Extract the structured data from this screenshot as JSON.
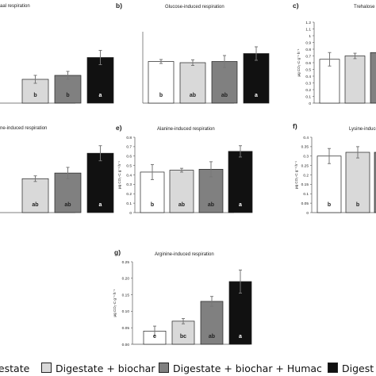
{
  "chart_data": [
    {
      "id": "a",
      "type": "bar",
      "panel_label": "",
      "title": "aal respiration",
      "categories": [
        "Digestate",
        "Digestate + biochar",
        "Digestate + biochar + Humac",
        "Digestate + Humac"
      ],
      "values": [
        null,
        0.6,
        0.7,
        1.15
      ],
      "errors": [
        null,
        0.1,
        0.1,
        0.18
      ],
      "letters": [
        "",
        "b",
        "b",
        "a"
      ],
      "ylabel": "",
      "ylim": [
        0,
        1.8
      ],
      "yticks": [],
      "grid": false
    },
    {
      "id": "b",
      "type": "bar",
      "panel_label": "b)",
      "title": "Glucose-induced respiration",
      "categories": [
        "Digestate",
        "Digestate + biochar",
        "Digestate + biochar + Humac",
        "Digestate + Humac"
      ],
      "values": [
        1.05,
        1.02,
        1.05,
        1.25
      ],
      "errors": [
        0.05,
        0.07,
        0.15,
        0.17
      ],
      "letters": [
        "b",
        "ab",
        "ab",
        "a"
      ],
      "ylabel": "",
      "ylim": [
        0,
        1.8
      ],
      "yticks": [],
      "grid": false
    },
    {
      "id": "c",
      "type": "bar",
      "panel_label": "c)",
      "title": "Trehalose induced re",
      "categories": [
        "Digestate",
        "Digestate + biochar",
        "Digestate + biochar + Humac",
        "Digestate + Humac"
      ],
      "values": [
        0.65,
        0.7,
        0.75,
        null
      ],
      "errors": [
        0.1,
        0.04,
        0.06,
        null
      ],
      "letters": [
        "",
        "",
        "",
        ""
      ],
      "ylabel": "µg CO₂-C g⁻¹ h⁻¹",
      "ylim": [
        0,
        1.2
      ],
      "yticks": [
        "0",
        "0.1",
        "0.2",
        "0.3",
        "0.4",
        "0.5",
        "0.6",
        "0.7",
        "0.8",
        "0.9",
        "1",
        "1.1",
        "1.2"
      ],
      "grid": false
    },
    {
      "id": "d",
      "type": "bar",
      "panel_label": "",
      "title": "ne-induced respiration",
      "categories": [
        "Digestate",
        "Digestate + biochar",
        "Digestate + biochar + Humac",
        "Digestate + Humac"
      ],
      "values": [
        null,
        0.36,
        0.42,
        0.63
      ],
      "errors": [
        null,
        0.03,
        0.06,
        0.08
      ],
      "letters": [
        "",
        "ab",
        "ab",
        "a"
      ],
      "ylabel": "",
      "ylim": [
        0,
        0.8
      ],
      "yticks": [],
      "grid": false
    },
    {
      "id": "e",
      "type": "bar",
      "panel_label": "e)",
      "title": "Alanine-induced respiration",
      "categories": [
        "Digestate",
        "Digestate + biochar",
        "Digestate + biochar + Humac",
        "Digestate + Humac"
      ],
      "values": [
        0.43,
        0.45,
        0.46,
        0.65
      ],
      "errors": [
        0.08,
        0.02,
        0.08,
        0.06
      ],
      "letters": [
        "b",
        "ab",
        "ab",
        "a"
      ],
      "ylabel": "µg CO₂-C g⁻¹ h⁻¹",
      "ylim": [
        0,
        0.8
      ],
      "yticks": [
        "0",
        "0.1",
        "0.2",
        "0.3",
        "0.4",
        "0.5",
        "0.6",
        "0.7",
        "0.8"
      ],
      "grid": false
    },
    {
      "id": "f",
      "type": "bar",
      "panel_label": "f)",
      "title": "Lysine-induced res",
      "categories": [
        "Digestate",
        "Digestate + biochar",
        "Digestate + biochar + Humac",
        "Digestate + Humac"
      ],
      "values": [
        0.3,
        0.32,
        0.32,
        null
      ],
      "errors": [
        0.04,
        0.03,
        0.04,
        null
      ],
      "letters": [
        "b",
        "b",
        "",
        ""
      ],
      "ylabel": "µg CO₂-C g⁻¹ h⁻¹",
      "ylim": [
        0,
        0.4
      ],
      "yticks": [
        "0",
        "0.05",
        "0.1",
        "0.15",
        "0.2",
        "0.25",
        "0.3",
        "0.35",
        "0.4"
      ],
      "grid": false
    },
    {
      "id": "g",
      "type": "bar",
      "panel_label": "g)",
      "title": "Arginine-induced respiration",
      "categories": [
        "Digestate",
        "Digestate + biochar",
        "Digestate + biochar + Humac",
        "Digestate + Humac"
      ],
      "values": [
        0.04,
        0.07,
        0.13,
        0.19
      ],
      "errors": [
        0.015,
        0.008,
        0.015,
        0.035
      ],
      "letters": [
        "c",
        "bc",
        "ab",
        "a"
      ],
      "ylabel": "µg CO₂-C g⁻¹ h⁻¹",
      "ylim": [
        0,
        0.25
      ],
      "yticks": [
        "0.00",
        "0.05",
        "0.10",
        "0.15",
        "0.20",
        "0.25"
      ],
      "grid": false
    }
  ],
  "legend": {
    "items": [
      {
        "label": "gestate",
        "color": "#ffffff"
      },
      {
        "label": "Digestate + biochar",
        "color": "#d9d9d9"
      },
      {
        "label": "Digestate + biochar + Humac",
        "color": "#808080"
      },
      {
        "label": "Digest",
        "color": "#111111"
      }
    ]
  },
  "colors": {
    "series": [
      "#ffffff",
      "#d9d9d9",
      "#808080",
      "#111111"
    ],
    "stroke": "#222222",
    "error_bar": "#777777"
  }
}
